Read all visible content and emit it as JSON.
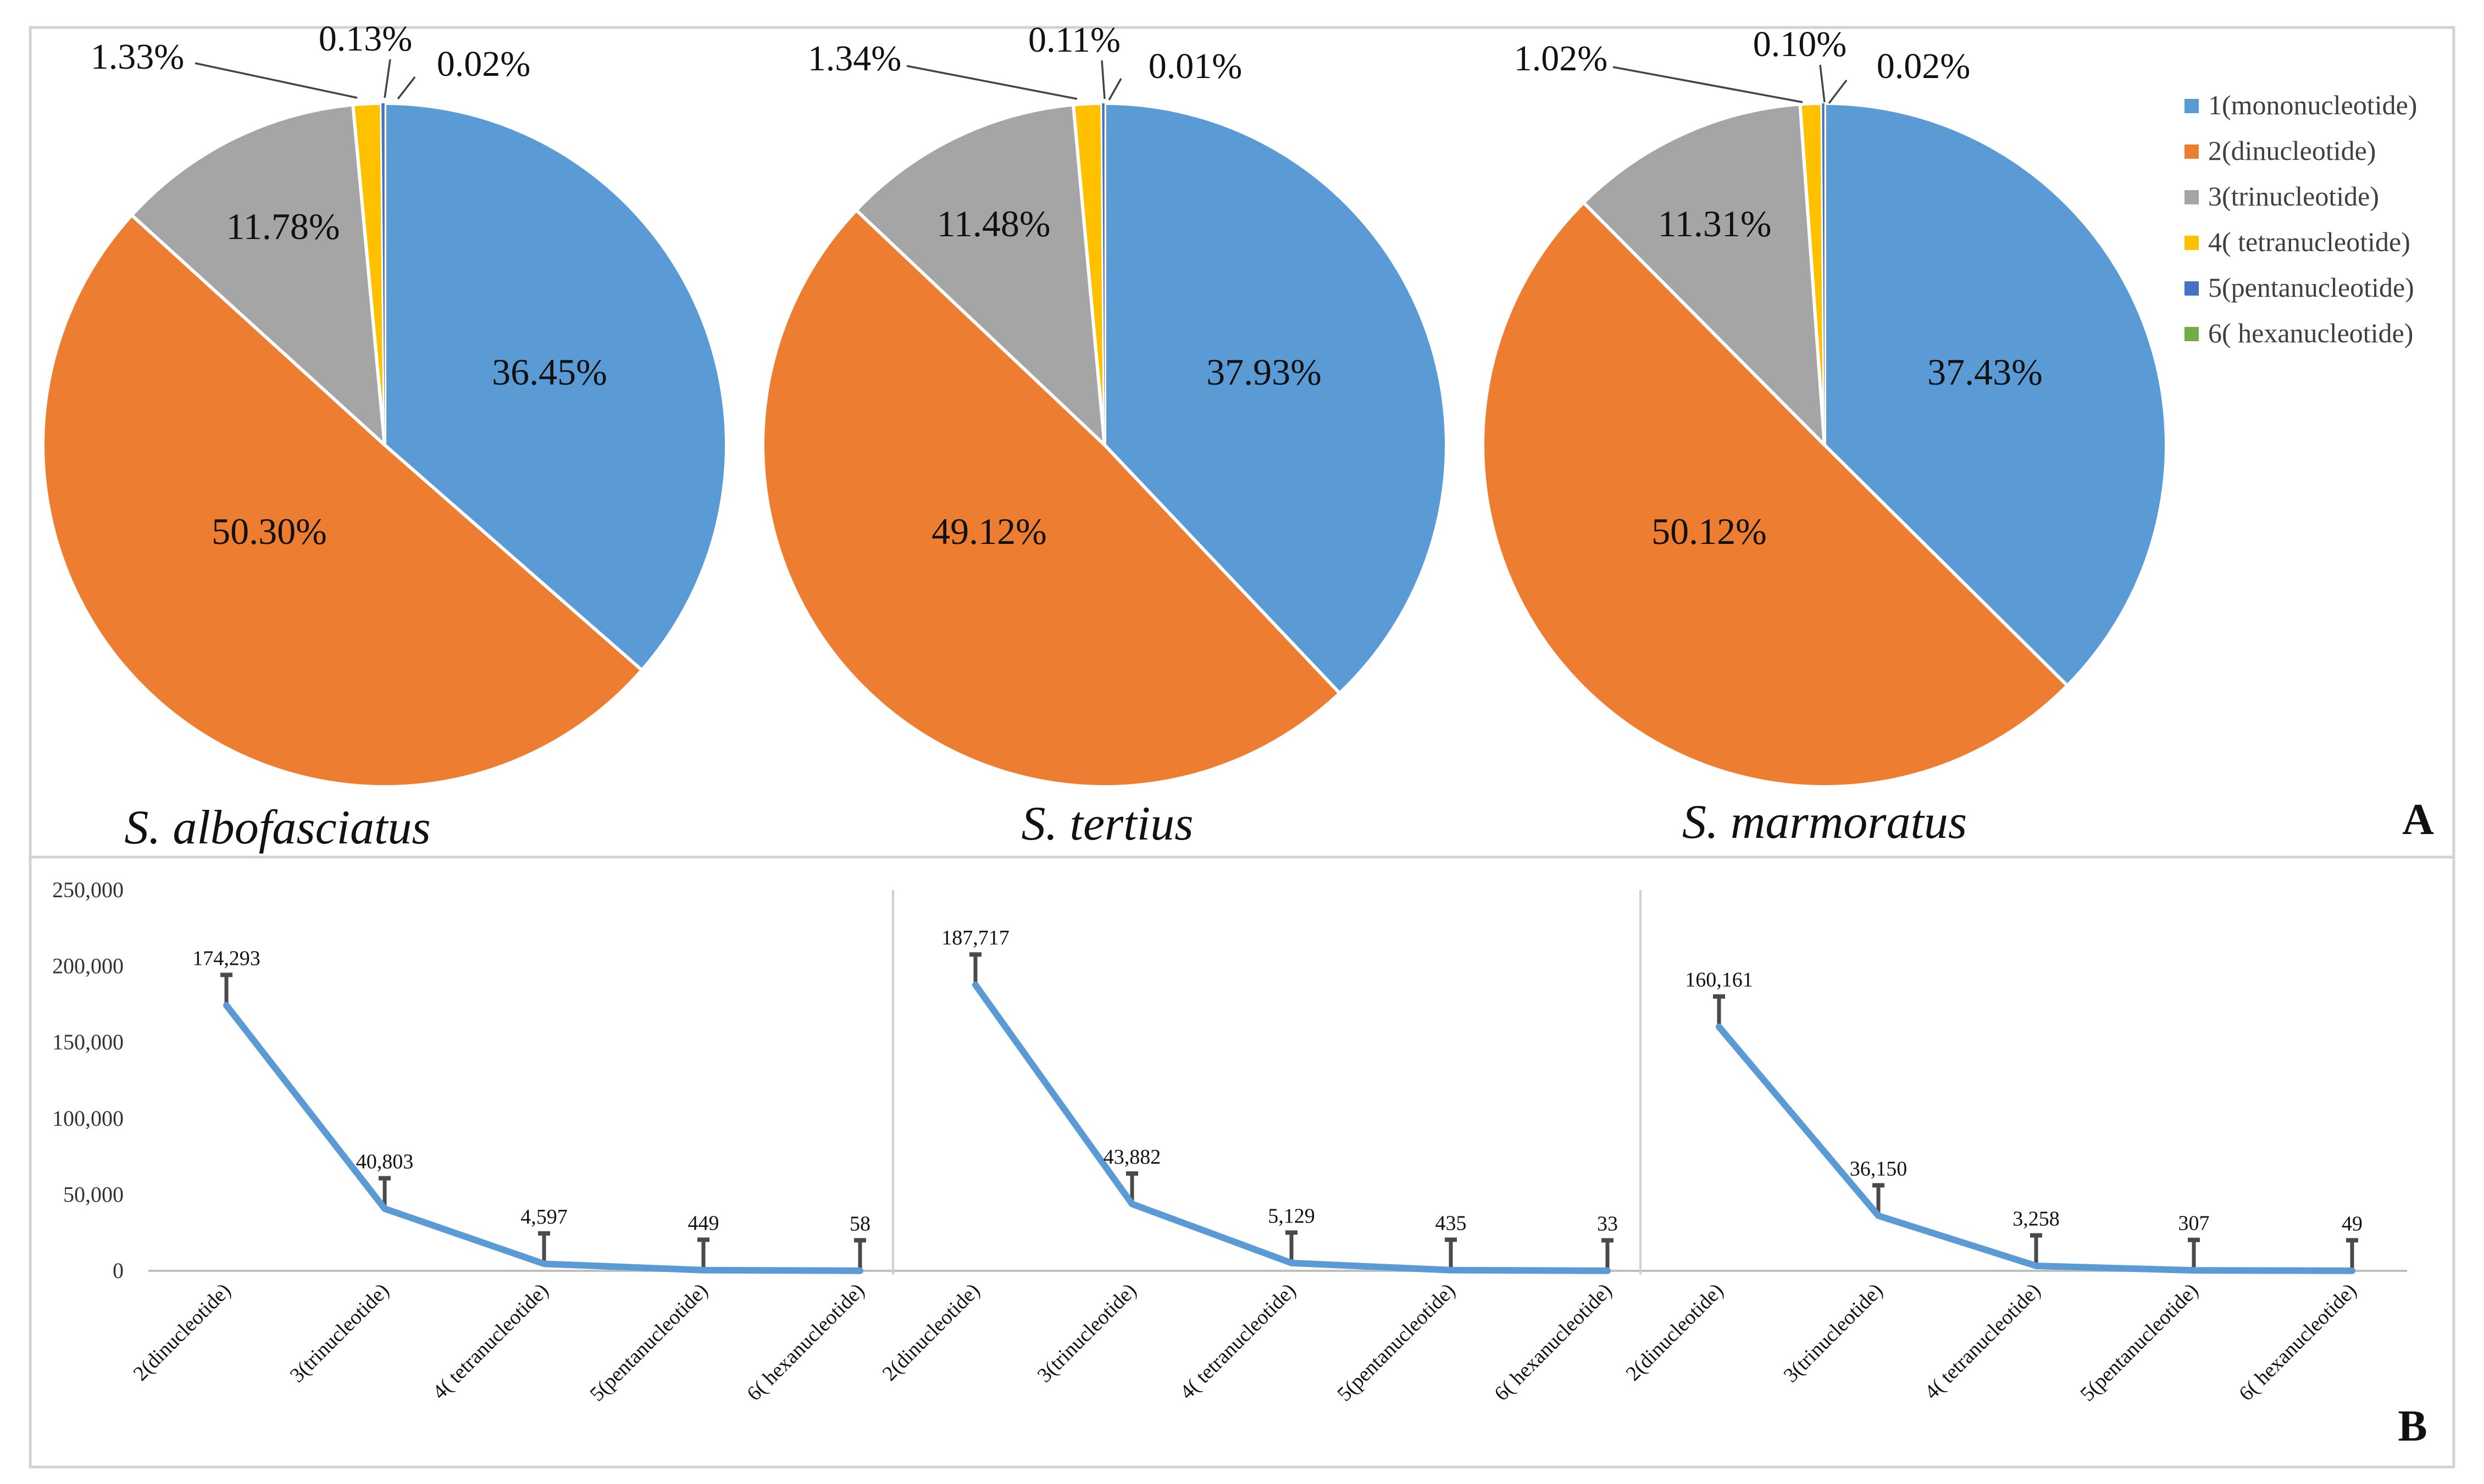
{
  "panel_labels": {
    "a": "A",
    "b": "B"
  },
  "chart_data": [
    {
      "type": "pie",
      "title": "S. albofasciatus",
      "labels": [
        "1(mononucleotide)",
        "2(dinucleotide)",
        "3(trinucleotide)",
        "4( tetranucleotide)",
        "5(pentanucleotide)",
        "6( hexanucleotide)"
      ],
      "values": [
        36.45,
        50.3,
        11.78,
        1.33,
        0.13,
        0.02
      ],
      "value_labels": [
        "36.45%",
        "50.30%",
        "11.78%",
        "1.33%",
        "0.13%",
        "0.02%"
      ],
      "colors": [
        "#5b9bd5",
        "#ed7d31",
        "#a5a5a5",
        "#ffc000",
        "#4472c4",
        "#70ad47"
      ]
    },
    {
      "type": "pie",
      "title": "S. tertius",
      "labels": [
        "1(mononucleotide)",
        "2(dinucleotide)",
        "3(trinucleotide)",
        "4( tetranucleotide)",
        "5(pentanucleotide)",
        "6( hexanucleotide)"
      ],
      "values": [
        37.93,
        49.12,
        11.48,
        1.34,
        0.11,
        0.01
      ],
      "value_labels": [
        "37.93%",
        "49.12%",
        "11.48%",
        "1.34%",
        "0.11%",
        "0.01%"
      ],
      "colors": [
        "#5b9bd5",
        "#ed7d31",
        "#a5a5a5",
        "#ffc000",
        "#4472c4",
        "#70ad47"
      ]
    },
    {
      "type": "pie",
      "title": "S. marmoratus",
      "labels": [
        "1(mononucleotide)",
        "2(dinucleotide)",
        "3(trinucleotide)",
        "4( tetranucleotide)",
        "5(pentanucleotide)",
        "6( hexanucleotide)"
      ],
      "values": [
        37.43,
        50.12,
        11.31,
        1.02,
        0.1,
        0.02
      ],
      "value_labels": [
        "37.43%",
        "50.12%",
        "11.31%",
        "1.02%",
        "0.10%",
        "0.02%"
      ],
      "colors": [
        "#5b9bd5",
        "#ed7d31",
        "#a5a5a5",
        "#ffc000",
        "#4472c4",
        "#70ad47"
      ]
    },
    {
      "type": "line",
      "categories": [
        "2(dinucleotide)",
        "3(trinucleotide)",
        "4( tetranucleotide)",
        "5(pentanucleotide)",
        "6( hexanucleotide)"
      ],
      "values": [
        174293,
        40803,
        4597,
        449,
        58
      ],
      "value_labels": [
        "174,293",
        "40,803",
        "4,597",
        "449",
        "58"
      ],
      "ylim": [
        0,
        250000
      ],
      "yticks": [
        "0",
        "50,000",
        "100,000",
        "150,000",
        "200,000",
        "250,000"
      ],
      "error_bar": 20000,
      "color": "#5b9bd5"
    },
    {
      "type": "line",
      "categories": [
        "2(dinucleotide)",
        "3(trinucleotide)",
        "4( tetranucleotide)",
        "5(pentanucleotide)",
        "6( hexanucleotide)"
      ],
      "values": [
        187717,
        43882,
        5129,
        435,
        33
      ],
      "value_labels": [
        "187,717",
        "43,882",
        "5,129",
        "435",
        "33"
      ],
      "ylim": [
        0,
        250000
      ],
      "error_bar": 20000,
      "color": "#5b9bd5"
    },
    {
      "type": "line",
      "categories": [
        "2(dinucleotide)",
        "3(trinucleotide)",
        "4( tetranucleotide)",
        "5(pentanucleotide)",
        "6( hexanucleotide)"
      ],
      "values": [
        160161,
        36150,
        3258,
        307,
        49
      ],
      "value_labels": [
        "160,161",
        "36,150",
        "3,258",
        "307",
        "49"
      ],
      "ylim": [
        0,
        250000
      ],
      "error_bar": 20000,
      "color": "#5b9bd5"
    }
  ]
}
